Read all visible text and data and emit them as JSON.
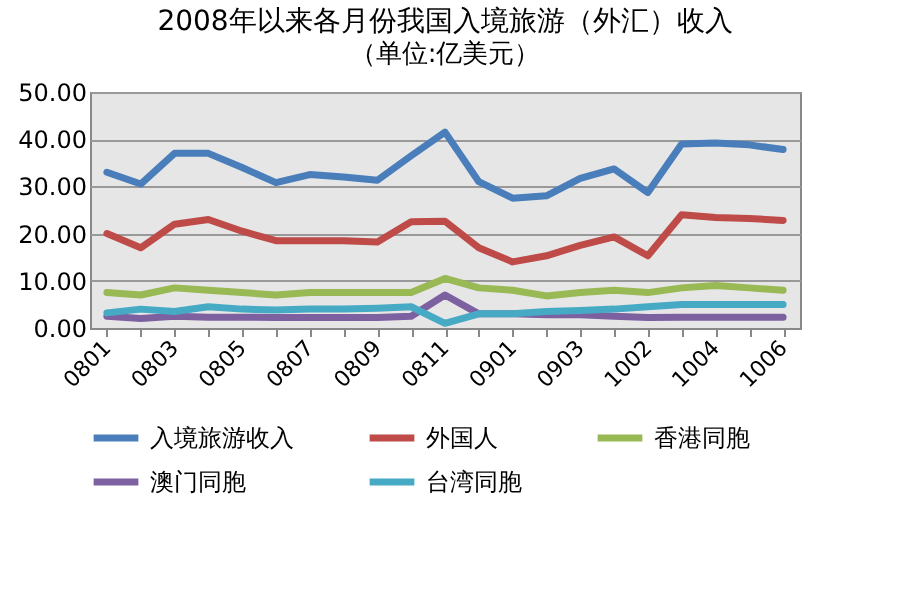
{
  "chart_data": {
    "type": "line",
    "title": "2008年以来各月份我国入境旅游（外汇）收入",
    "subtitle": "（单位:亿美元）",
    "categories": [
      "0801",
      null,
      "0803",
      null,
      "0805",
      null,
      "0807",
      null,
      "0809",
      null,
      "0811",
      null,
      "0901",
      null,
      "0903",
      null,
      "1002",
      null,
      "1004",
      null,
      "1006"
    ],
    "series": [
      {
        "name": "入境旅游收入",
        "color": "#4a7ebb",
        "values": [
          33,
          30.5,
          37,
          37,
          34,
          30.8,
          32.5,
          32,
          31.3,
          36.5,
          41.5,
          31,
          27.5,
          28,
          31.7,
          33.7,
          28.7,
          39,
          39.2,
          38.8,
          37.8
        ]
      },
      {
        "name": "外国人",
        "color": "#be4b48",
        "values": [
          20,
          17,
          22,
          23,
          20.5,
          18.5,
          18.5,
          18.5,
          18.2,
          22.5,
          22.6,
          17,
          14,
          15.3,
          17.5,
          19.3,
          15.3,
          24,
          23.4,
          23.2,
          22.8
        ]
      },
      {
        "name": "香港同胞",
        "color": "#98b954",
        "values": [
          7.5,
          7,
          8.5,
          8,
          7.5,
          7,
          7.5,
          7.5,
          7.5,
          7.5,
          10.5,
          8.5,
          8,
          6.8,
          7.5,
          8,
          7.5,
          8.5,
          9,
          8.5,
          8
        ]
      },
      {
        "name": "澳门同胞",
        "color": "#7d60a0",
        "values": [
          2.5,
          2,
          2.5,
          2.3,
          2.3,
          2.2,
          2.2,
          2.2,
          2.2,
          2.5,
          7,
          3,
          3,
          2.8,
          2.8,
          2.5,
          2.2,
          2.3,
          2.3,
          2.3,
          2.3
        ]
      },
      {
        "name": "台湾同胞",
        "color": "#46aac5",
        "values": [
          3.2,
          4,
          3.5,
          4.5,
          4,
          3.8,
          4,
          4,
          4.2,
          4.5,
          1,
          3,
          3,
          3.5,
          3.7,
          4,
          4.5,
          5,
          5,
          5,
          5
        ]
      }
    ],
    "ylim": [
      0,
      50
    ],
    "yticks": [
      {
        "value": 0,
        "label": "0.00"
      },
      {
        "value": 10,
        "label": "10.00"
      },
      {
        "value": 20,
        "label": "20.00"
      },
      {
        "value": 30,
        "label": "30.00"
      },
      {
        "value": 40,
        "label": "40.00"
      },
      {
        "value": 50,
        "label": "50.00"
      }
    ],
    "grid": "y",
    "legend": "bottom",
    "marker": "none",
    "line_style": "solid"
  }
}
